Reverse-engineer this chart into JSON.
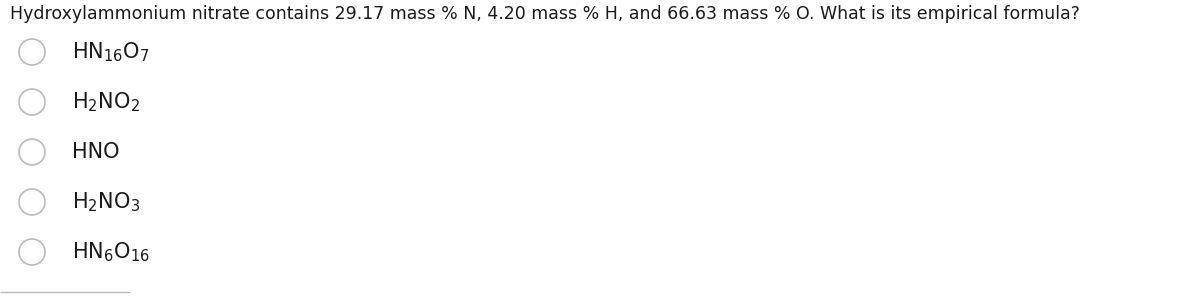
{
  "question": "Hydroxylammonium nitrate contains 29.17 mass % N, 4.20 mass % H, and 66.63 mass % O. What is its empirical formula?",
  "options": [
    {
      "label": "HN$_{16}$O$_7$"
    },
    {
      "label": "H$_2$NO$_2$"
    },
    {
      "label": "HNO"
    },
    {
      "label": "H$_2$NO$_3$"
    },
    {
      "label": "HN$_6$O$_{16}$"
    }
  ],
  "bg_color": "#ffffff",
  "text_color": "#1a1a1a",
  "question_fontsize": 12.5,
  "option_fontsize": 15.0,
  "circle_edge_color": "#bbbbbb",
  "circle_lw": 1.2,
  "separator_color": "#bbbbbb"
}
